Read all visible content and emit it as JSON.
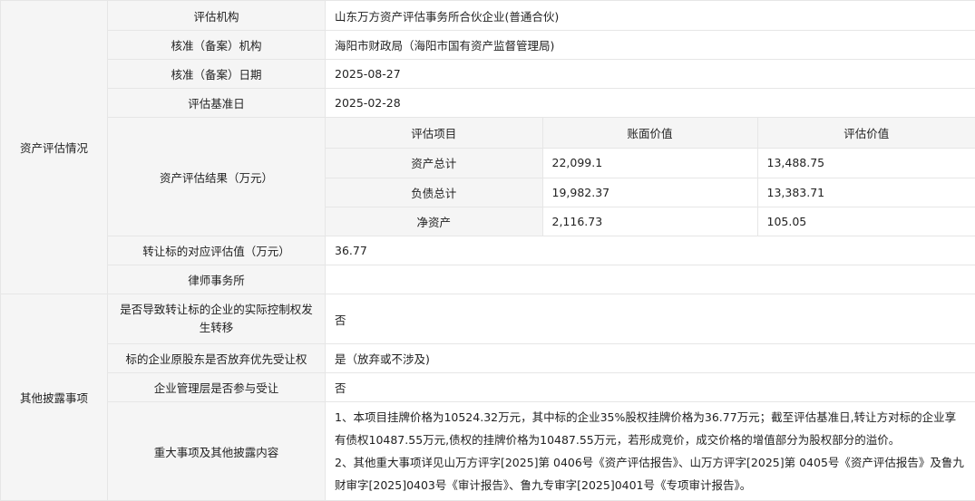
{
  "groups": {
    "asset": "资产评估情况",
    "other": "其他披露事项"
  },
  "asset_rows": [
    {
      "label": "评估机构",
      "value": "山东万方资产评估事务所合伙企业(普通合伙)"
    },
    {
      "label": "核准（备案）机构",
      "value": "海阳市财政局（海阳市国有资产监督管理局)"
    },
    {
      "label": "核准（备案）日期",
      "value": "2025-08-27"
    },
    {
      "label": "评估基准日",
      "value": "2025-02-28"
    }
  ],
  "result": {
    "label": "资产评估结果（万元）",
    "headers": [
      "评估项目",
      "账面价值",
      "评估价值"
    ],
    "rows": [
      [
        "资产总计",
        "22,099.1",
        "13,488.75"
      ],
      [
        "负债总计",
        "19,982.37",
        "13,383.71"
      ],
      [
        "净资产",
        "2,116.73",
        "105.05"
      ]
    ]
  },
  "target_value": {
    "label": "转让标的对应评估值（万元）",
    "value": "36.77"
  },
  "law_firm": {
    "label": "律师事务所",
    "value": ""
  },
  "other_rows": [
    {
      "label": "是否导致转让标的企业的实际控制权发生转移",
      "value": "否"
    },
    {
      "label": "标的企业原股东是否放弃优先受让权",
      "value": "是（放弃或不涉及)"
    },
    {
      "label": "企业管理层是否参与受让",
      "value": "否"
    }
  ],
  "major": {
    "label": "重大事项及其他披露内容",
    "lines": [
      "1、本项目挂牌价格为10524.32万元，其中标的企业35%股权挂牌价格为36.77万元；截至评估基准日,转让方对标的企业享有债权10487.55万元,债权的挂牌价格为10487.55万元，若形成竞价，成交价格的增值部分为股权部分的溢价。",
      "2、其他重大事项详见山万方评字[2025]第 0406号《资产评估报告》、山万方评字[2025]第 0405号《资产评估报告》及鲁九财审字[2025]0403号《审计报告》、鲁九专审字[2025]0401号《专项审计报告》。"
    ]
  }
}
